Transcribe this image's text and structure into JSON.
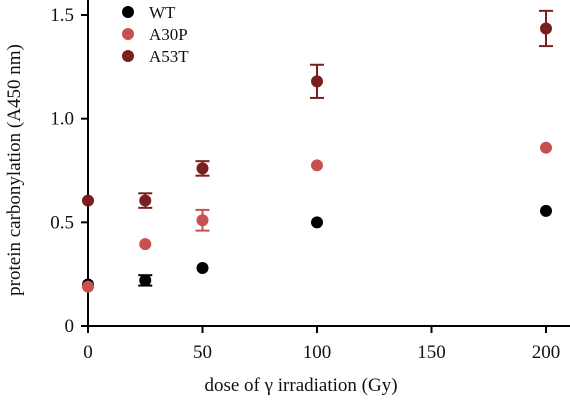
{
  "chart_data": {
    "type": "scatter",
    "xlabel": "dose of γ irradiation (Gy)",
    "ylabel": "protein carbonylation (A450 nm)",
    "xlim": [
      0,
      210
    ],
    "ylim": [
      0,
      1.55
    ],
    "xticks": [
      0,
      50,
      100,
      150,
      200
    ],
    "yticks": [
      0,
      0.5,
      1.0,
      1.5
    ],
    "xtick_labels": [
      "0",
      "50",
      "100",
      "150",
      "200"
    ],
    "ytick_labels": [
      "0",
      "0.5",
      "1.0",
      "1.5"
    ],
    "grid": false,
    "legend_position": "top-left",
    "series": [
      {
        "name": "WT",
        "color": "#000000",
        "points": [
          {
            "x": 0,
            "y": 0.2,
            "err": 0.0
          },
          {
            "x": 25,
            "y": 0.22,
            "err": 0.025
          },
          {
            "x": 50,
            "y": 0.28,
            "err": 0.0
          },
          {
            "x": 100,
            "y": 0.5,
            "err": 0.0
          },
          {
            "x": 200,
            "y": 0.555,
            "err": 0.0
          }
        ]
      },
      {
        "name": "A30P",
        "color": "#c8504f",
        "points": [
          {
            "x": 0,
            "y": 0.19,
            "err": 0.0
          },
          {
            "x": 25,
            "y": 0.395,
            "err": 0.0
          },
          {
            "x": 50,
            "y": 0.51,
            "err": 0.05
          },
          {
            "x": 100,
            "y": 0.775,
            "err": 0.0
          },
          {
            "x": 200,
            "y": 0.86,
            "err": 0.0
          }
        ]
      },
      {
        "name": "A53T",
        "color": "#7a1f1f",
        "points": [
          {
            "x": 0,
            "y": 0.605,
            "err": 0.0
          },
          {
            "x": 25,
            "y": 0.605,
            "err": 0.035
          },
          {
            "x": 50,
            "y": 0.76,
            "err": 0.035
          },
          {
            "x": 100,
            "y": 1.18,
            "err": 0.08
          },
          {
            "x": 200,
            "y": 1.435,
            "err": 0.085
          }
        ]
      }
    ]
  }
}
